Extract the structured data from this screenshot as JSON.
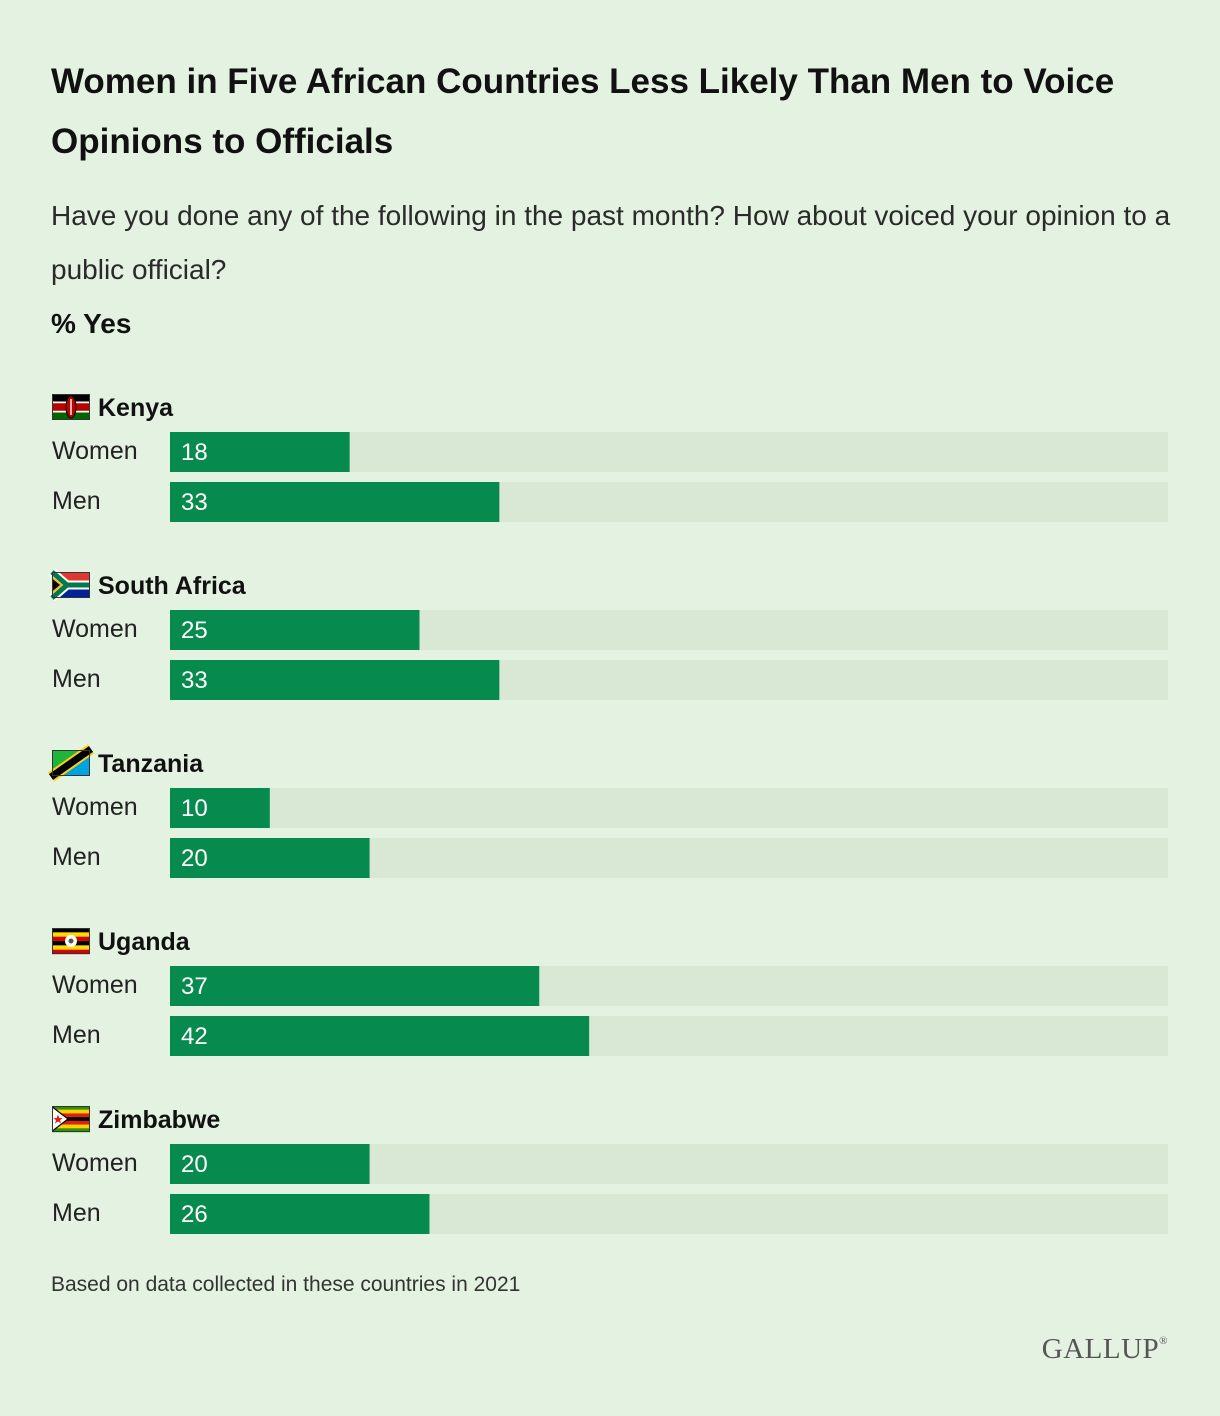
{
  "chart_data": {
    "type": "bar",
    "orientation": "horizontal",
    "title": "Women in Five African Countries Less Likely Than Men to Voice Opinions to Officials",
    "subtitle": "Have you done any of the following in the past month? How about voiced your opinion to a public official?",
    "unit_label": "% Yes",
    "xlim": [
      0,
      100
    ],
    "series": [
      {
        "name": "Women",
        "values": [
          18,
          25,
          10,
          37,
          20
        ]
      },
      {
        "name": "Men",
        "values": [
          33,
          33,
          20,
          42,
          26
        ]
      }
    ],
    "categories": [
      "Kenya",
      "South Africa",
      "Tanzania",
      "Uganda",
      "Zimbabwe"
    ],
    "bar_color": "#078a4d",
    "track_color": "#d8e8d5",
    "value_label_color": "#ffffff"
  },
  "footnote": "Based on data collected in these countries in 2021",
  "brand": {
    "name": "GALLUP",
    "mark": "®"
  },
  "flag_icons": [
    "kenya-flag-icon",
    "south-africa-flag-icon",
    "tanzania-flag-icon",
    "uganda-flag-icon",
    "zimbabwe-flag-icon"
  ]
}
